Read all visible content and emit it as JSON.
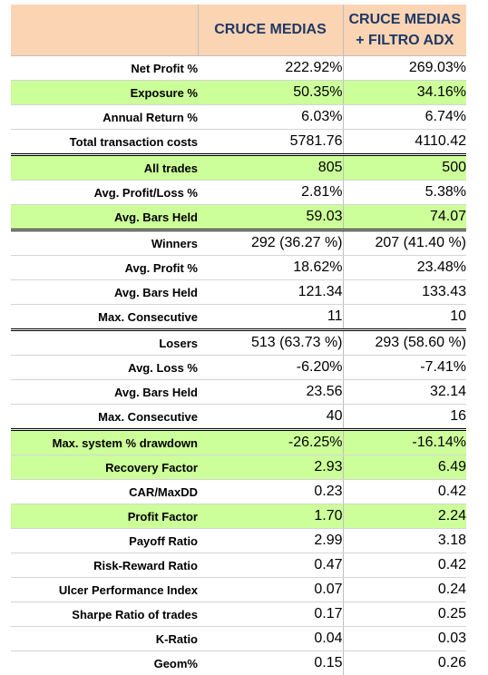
{
  "columns": [
    "",
    "CRUCE MEDIAS",
    "CRUCE MEDIAS\n+ FILTRO ADX"
  ],
  "rows": [
    {
      "label": "Net Profit %",
      "v1": "222.92%",
      "v2": "269.03%",
      "highlight": false,
      "sep": false
    },
    {
      "label": "Exposure %",
      "v1": "50.35%",
      "v2": "34.16%",
      "highlight": true,
      "sep": false
    },
    {
      "label": "Annual Return %",
      "v1": "6.03%",
      "v2": "6.74%",
      "highlight": false,
      "sep": false
    },
    {
      "label": "Total transaction costs",
      "v1": "5781.76",
      "v2": "4110.42",
      "highlight": false,
      "sep": true
    },
    {
      "label": "All trades",
      "v1": "805",
      "v2": "500",
      "highlight": true,
      "sep": false
    },
    {
      "label": "Avg. Profit/Loss %",
      "v1": "2.81%",
      "v2": "5.38%",
      "highlight": false,
      "sep": false
    },
    {
      "label": "Avg. Bars Held",
      "v1": "59.03",
      "v2": "74.07",
      "highlight": true,
      "sep": true
    },
    {
      "label": "Winners",
      "v1": "292 (36.27 %)",
      "v2": "207 (41.40 %)",
      "highlight": false,
      "sep": false
    },
    {
      "label": "Avg. Profit %",
      "v1": "18.62%",
      "v2": "23.48%",
      "highlight": false,
      "sep": false
    },
    {
      "label": "Avg. Bars Held",
      "v1": "121.34",
      "v2": "133.43",
      "highlight": false,
      "sep": false
    },
    {
      "label": "Max. Consecutive",
      "v1": "11",
      "v2": "10",
      "highlight": false,
      "sep": true
    },
    {
      "label": "Losers",
      "v1": "513 (63.73 %)",
      "v2": "293 (58.60 %)",
      "highlight": false,
      "sep": false
    },
    {
      "label": "Avg. Loss %",
      "v1": "-6.20%",
      "v2": "-7.41%",
      "highlight": false,
      "sep": false
    },
    {
      "label": "Avg. Bars Held",
      "v1": "23.56",
      "v2": "32.14",
      "highlight": false,
      "sep": false
    },
    {
      "label": "Max. Consecutive",
      "v1": "40",
      "v2": "16",
      "highlight": false,
      "sep": true
    },
    {
      "label": "Max. system % drawdown",
      "v1": "-26.25%",
      "v2": "-16.14%",
      "highlight": true,
      "sep": false
    },
    {
      "label": "Recovery Factor",
      "v1": "2.93",
      "v2": "6.49",
      "highlight": true,
      "sep": false
    },
    {
      "label": "CAR/MaxDD",
      "v1": "0.23",
      "v2": "0.42",
      "highlight": false,
      "sep": false
    },
    {
      "label": "Profit Factor",
      "v1": "1.70",
      "v2": "2.24",
      "highlight": true,
      "sep": false
    },
    {
      "label": "Payoff Ratio",
      "v1": "2.99",
      "v2": "3.18",
      "highlight": false,
      "sep": false
    },
    {
      "label": "Risk-Reward Ratio",
      "v1": "0.47",
      "v2": "0.42",
      "highlight": false,
      "sep": false
    },
    {
      "label": "Ulcer Performance Index",
      "v1": "0.07",
      "v2": "0.24",
      "highlight": false,
      "sep": false
    },
    {
      "label": "Sharpe Ratio of trades",
      "v1": "0.17",
      "v2": "0.25",
      "highlight": false,
      "sep": false
    },
    {
      "label": "K-Ratio",
      "v1": "0.04",
      "v2": "0.03",
      "highlight": false,
      "sep": false
    },
    {
      "label": "Geom%",
      "v1": "0.15",
      "v2": "0.26",
      "highlight": false,
      "sep": false
    }
  ],
  "colors": {
    "header_bg": "#fbd4b4",
    "header_text": "#1f3864",
    "highlight_bg": "#ccff99"
  }
}
